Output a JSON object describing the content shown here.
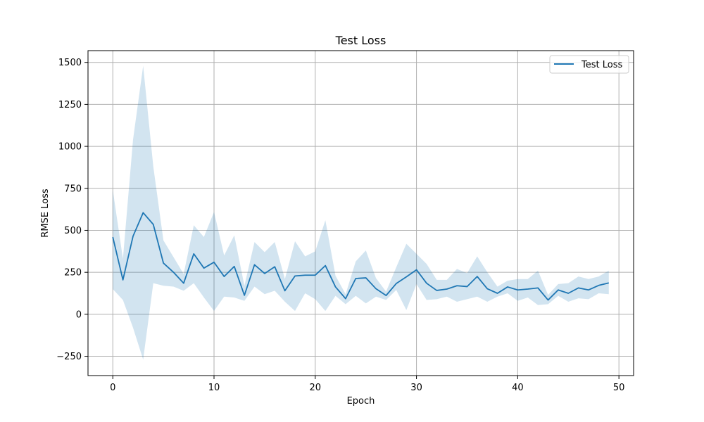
{
  "chart_data": {
    "type": "line",
    "title": "Test Loss",
    "xlabel": "Epoch",
    "ylabel": "RMSE Loss",
    "xlim": [
      -2.45,
      51.45
    ],
    "ylim": [
      -365,
      1570
    ],
    "xticks": [
      0,
      10,
      20,
      30,
      40,
      50
    ],
    "yticks": [
      -250,
      0,
      250,
      500,
      750,
      1000,
      1250,
      1500
    ],
    "grid": true,
    "legend_position": "top-right",
    "colors": {
      "line": "#1f77b4",
      "band": "#1f77b4"
    },
    "series": [
      {
        "name": "Test Loss",
        "x": [
          0,
          1,
          2,
          3,
          4,
          5,
          6,
          7,
          8,
          9,
          10,
          11,
          12,
          13,
          14,
          15,
          16,
          17,
          18,
          19,
          20,
          21,
          22,
          23,
          24,
          25,
          26,
          27,
          28,
          29,
          30,
          31,
          32,
          33,
          34,
          35,
          36,
          37,
          38,
          39,
          40,
          41,
          42,
          43,
          44,
          45,
          46,
          47,
          48,
          49
        ],
        "mean": [
          460,
          205,
          465,
          605,
          535,
          305,
          250,
          185,
          360,
          275,
          310,
          225,
          285,
          113,
          295,
          243,
          283,
          140,
          228,
          233,
          233,
          290,
          163,
          93,
          213,
          217,
          152,
          112,
          183,
          223,
          265,
          185,
          142,
          150,
          170,
          165,
          225,
          152,
          125,
          163,
          145,
          150,
          157,
          85,
          145,
          125,
          157,
          145,
          172,
          187
        ],
        "upper": [
          740,
          330,
          1040,
          1480,
          880,
          440,
          340,
          240,
          530,
          460,
          610,
          350,
          470,
          170,
          430,
          370,
          430,
          210,
          435,
          345,
          375,
          560,
          230,
          120,
          315,
          380,
          215,
          135,
          280,
          420,
          360,
          300,
          205,
          205,
          270,
          245,
          345,
          250,
          165,
          200,
          210,
          210,
          260,
          115,
          180,
          185,
          225,
          210,
          225,
          260
        ],
        "lower": [
          150,
          85,
          -80,
          -270,
          185,
          170,
          165,
          140,
          185,
          100,
          20,
          105,
          100,
          80,
          165,
          120,
          140,
          75,
          20,
          125,
          90,
          20,
          110,
          60,
          110,
          65,
          105,
          85,
          145,
          25,
          180,
          85,
          90,
          105,
          75,
          90,
          105,
          75,
          105,
          125,
          80,
          100,
          55,
          60,
          110,
          75,
          95,
          90,
          125,
          120
        ]
      }
    ]
  }
}
